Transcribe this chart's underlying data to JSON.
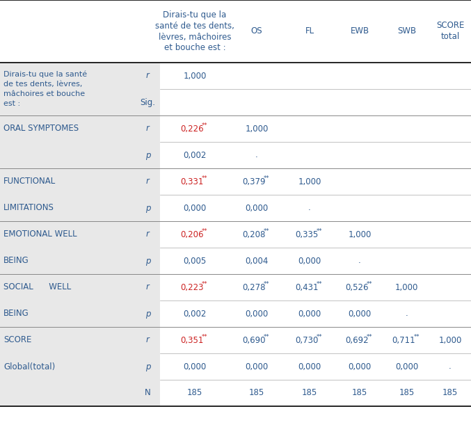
{
  "header_color": "#2E5A8E",
  "red_color": "#CC2222",
  "gray_bg": "#E8E8E8",
  "white_bg": "#FFFFFF",
  "col_headers": [
    "Dirais-tu que la\nsanté de tes dents,\nlèvres, mâchoires\net bouche est :",
    "OS",
    "FL",
    "EWB",
    "SWB",
    "SCORE\ntotal"
  ],
  "blocks": [
    {
      "labels": [
        "Dirais-tu que la santé",
        "de tes dents, lèvres,",
        "mâchoires et bouche",
        "est :"
      ],
      "rows": [
        {
          "stat": "r",
          "vals": [
            "1,000",
            "",
            "",
            "",
            "",
            ""
          ],
          "red": [
            false,
            false,
            false,
            false,
            false,
            false
          ],
          "stars": [
            false,
            false,
            false,
            false,
            false,
            false
          ]
        },
        {
          "stat": "Sig.",
          "vals": [
            "",
            "",
            "",
            "",
            "",
            ""
          ],
          "red": [
            false,
            false,
            false,
            false,
            false,
            false
          ],
          "stars": [
            false,
            false,
            false,
            false,
            false,
            false
          ]
        }
      ]
    },
    {
      "labels": [
        "ORAL SYMPTOMES",
        ""
      ],
      "rows": [
        {
          "stat": "r",
          "vals": [
            "0,226",
            "1,000",
            "",
            "",
            "",
            ""
          ],
          "red": [
            true,
            false,
            false,
            false,
            false,
            false
          ],
          "stars": [
            true,
            false,
            false,
            false,
            false,
            false
          ]
        },
        {
          "stat": "p",
          "vals": [
            "0,002",
            ".",
            "",
            "",
            "",
            ""
          ],
          "red": [
            false,
            false,
            false,
            false,
            false,
            false
          ],
          "stars": [
            false,
            false,
            false,
            false,
            false,
            false
          ]
        }
      ]
    },
    {
      "labels": [
        "FUNCTIONAL",
        "LIMITATIONS"
      ],
      "rows": [
        {
          "stat": "r",
          "vals": [
            "0,331",
            "0,379",
            "1,000",
            "",
            "",
            ""
          ],
          "red": [
            true,
            false,
            false,
            false,
            false,
            false
          ],
          "stars": [
            true,
            true,
            false,
            false,
            false,
            false
          ]
        },
        {
          "stat": "p",
          "vals": [
            "0,000",
            "0,000",
            ".",
            "",
            "",
            ""
          ],
          "red": [
            false,
            false,
            false,
            false,
            false,
            false
          ],
          "stars": [
            false,
            false,
            false,
            false,
            false,
            false
          ]
        }
      ]
    },
    {
      "labels": [
        "EMOTIONAL WELL",
        "BEING"
      ],
      "rows": [
        {
          "stat": "r",
          "vals": [
            "0,206",
            "0,208",
            "0,335",
            "1,000",
            "",
            ""
          ],
          "red": [
            true,
            false,
            false,
            false,
            false,
            false
          ],
          "stars": [
            true,
            true,
            true,
            false,
            false,
            false
          ]
        },
        {
          "stat": "p",
          "vals": [
            "0,005",
            "0,004",
            "0,000",
            ".",
            "",
            ""
          ],
          "red": [
            false,
            false,
            false,
            false,
            false,
            false
          ],
          "stars": [
            false,
            false,
            false,
            false,
            false,
            false
          ]
        }
      ]
    },
    {
      "labels": [
        "SOCIAL      WELL",
        "BEING"
      ],
      "rows": [
        {
          "stat": "r",
          "vals": [
            "0,223",
            "0,278",
            "0,431",
            "0,526",
            "1,000",
            ""
          ],
          "red": [
            true,
            false,
            false,
            false,
            false,
            false
          ],
          "stars": [
            true,
            true,
            true,
            true,
            false,
            false
          ]
        },
        {
          "stat": "p",
          "vals": [
            "0,002",
            "0,000",
            "0,000",
            "0,000",
            ".",
            ""
          ],
          "red": [
            false,
            false,
            false,
            false,
            false,
            false
          ],
          "stars": [
            false,
            false,
            false,
            false,
            false,
            false
          ]
        }
      ]
    },
    {
      "labels": [
        "SCORE",
        "Global(total)"
      ],
      "rows": [
        {
          "stat": "r",
          "vals": [
            "0,351",
            "0,690",
            "0,730",
            "0,692",
            "0,711",
            "1,000"
          ],
          "red": [
            true,
            false,
            false,
            false,
            false,
            false
          ],
          "stars": [
            true,
            true,
            true,
            true,
            true,
            false
          ]
        },
        {
          "stat": "p",
          "vals": [
            "0,000",
            "0,000",
            "0,000",
            "0,000",
            "0,000",
            "."
          ],
          "red": [
            false,
            false,
            false,
            false,
            false,
            false
          ],
          "stars": [
            false,
            false,
            false,
            false,
            false,
            false
          ]
        },
        {
          "stat": "N",
          "vals": [
            "185",
            "185",
            "185",
            "185",
            "185",
            "185"
          ],
          "red": [
            false,
            false,
            false,
            false,
            false,
            false
          ],
          "stars": [
            false,
            false,
            false,
            false,
            false,
            false
          ]
        }
      ]
    }
  ]
}
